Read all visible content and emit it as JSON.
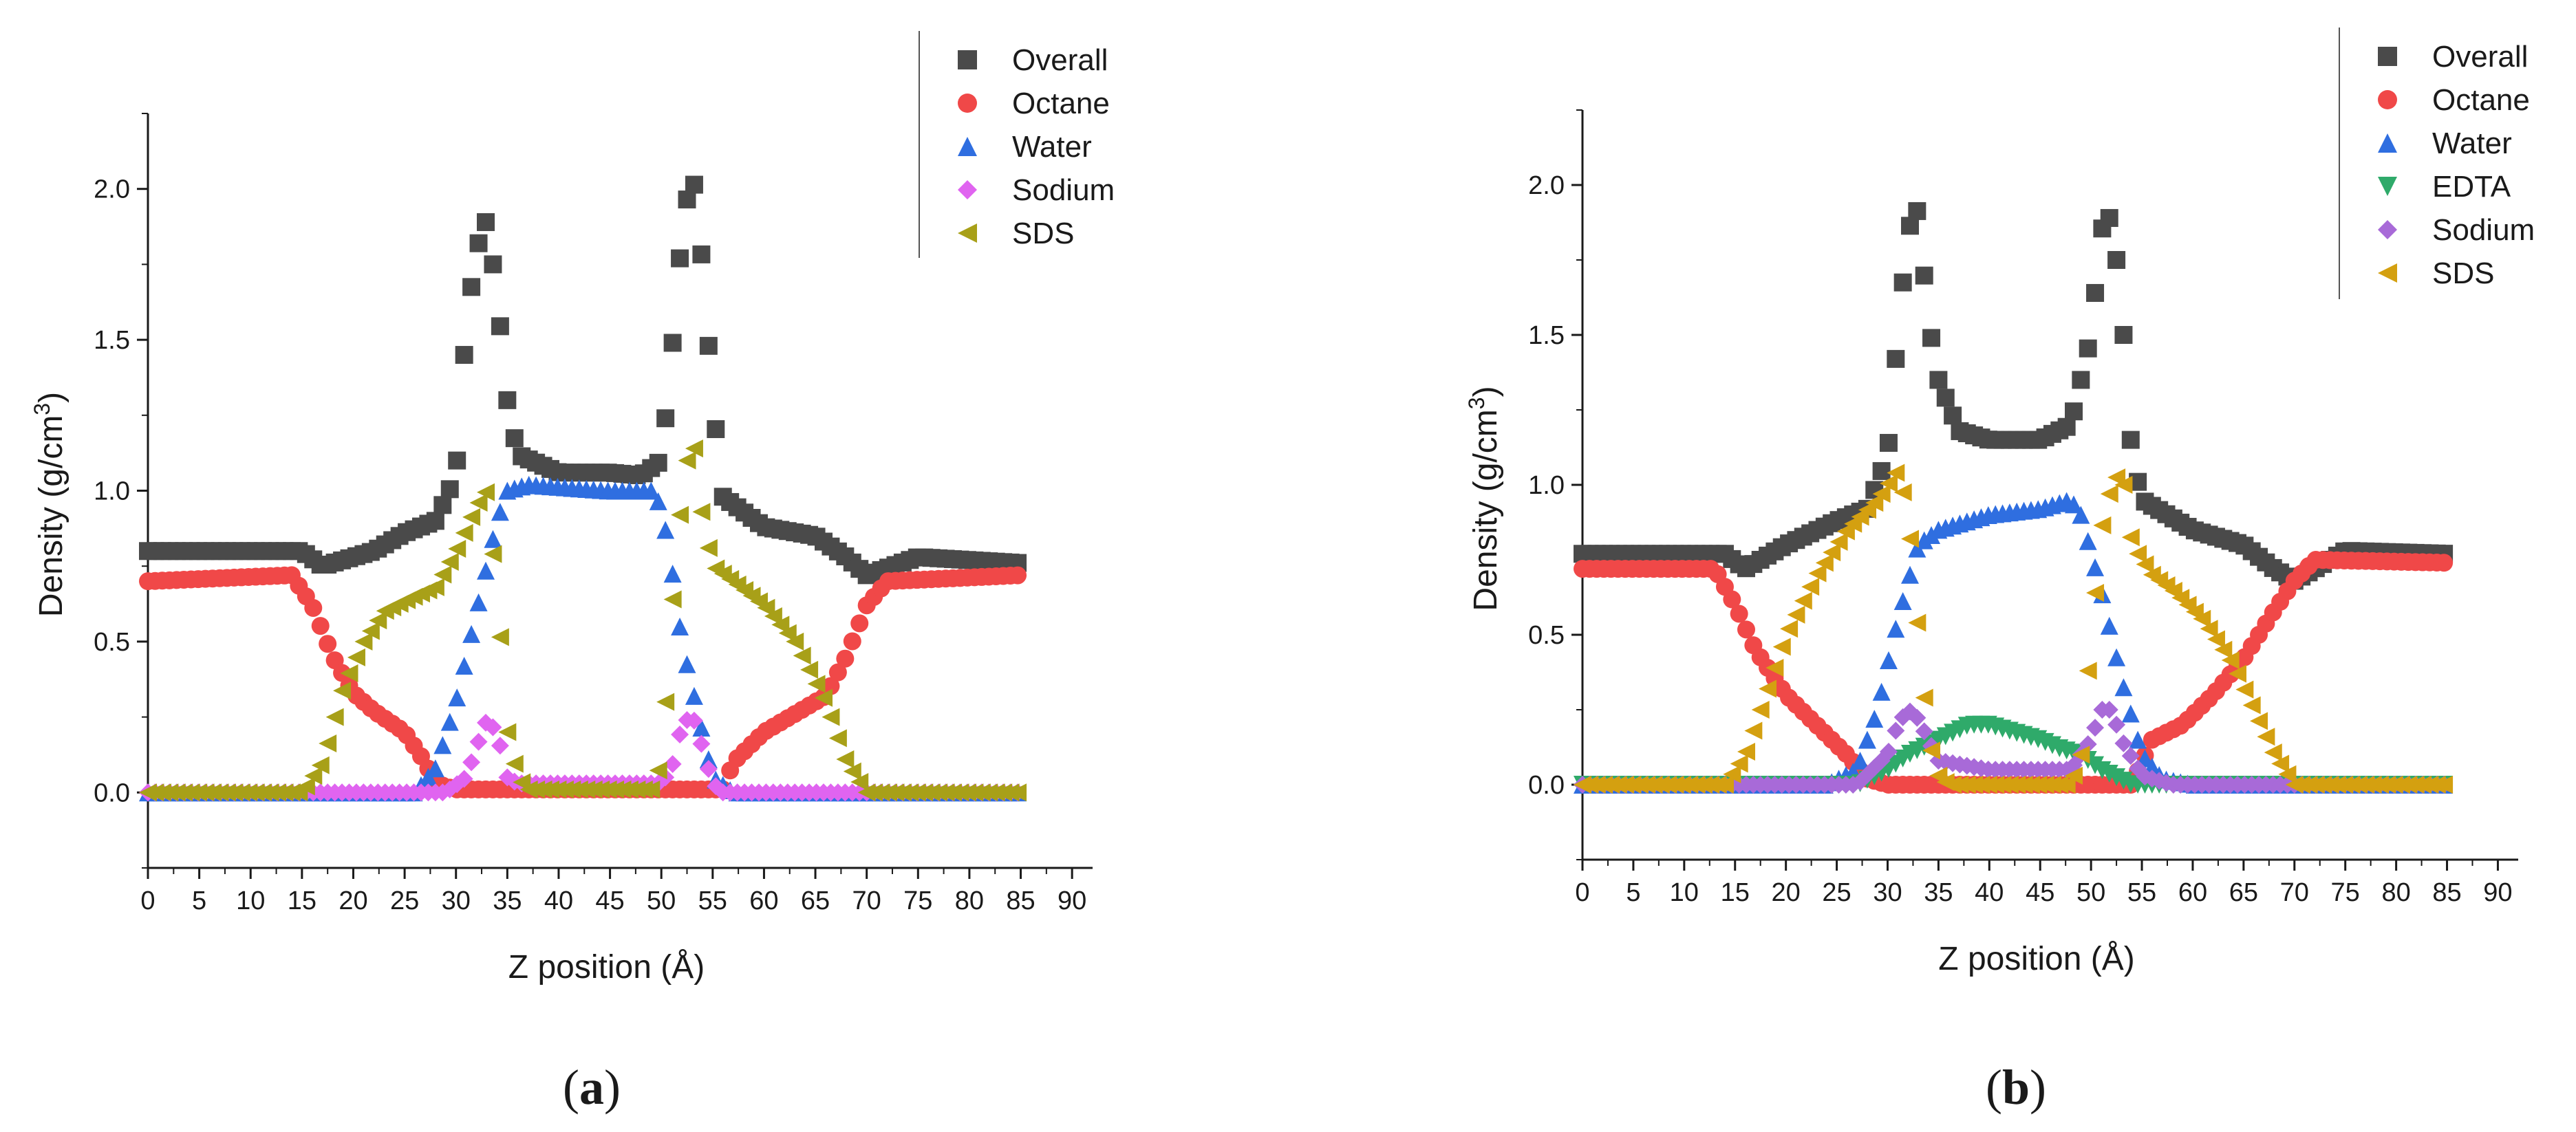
{
  "chart_data": [
    {
      "type": "scatter",
      "panel_label": "(a)",
      "xlabel": "Z position (Å)",
      "ylabel": "Density (g/cm",
      "ylabel_sup": "3",
      "ylabel_close": ")",
      "xlim": [
        0,
        92
      ],
      "ylim": [
        -0.25,
        2.25
      ],
      "xticks": [
        0,
        5,
        10,
        15,
        20,
        25,
        30,
        35,
        40,
        45,
        50,
        55,
        60,
        65,
        70,
        75,
        80,
        85,
        90
      ],
      "yticks": [
        0.0,
        0.5,
        1.0,
        1.5,
        2.0
      ],
      "ytick_labels": [
        "0.0",
        "0.5",
        "1.0",
        "1.5",
        "2.0"
      ],
      "legend_position": "top-right",
      "series": [
        {
          "name": "Overall",
          "marker": "square",
          "color": "#4a4a4a",
          "points": [
            [
              0,
              0.8
            ],
            [
              15,
              0.8
            ],
            [
              17,
              0.75
            ],
            [
              22,
              0.8
            ],
            [
              25,
              0.86
            ],
            [
              28,
              0.9
            ],
            [
              30,
              1.05
            ],
            [
              31,
              1.55
            ],
            [
              32,
              1.8
            ],
            [
              33,
              1.9
            ],
            [
              34,
              1.65
            ],
            [
              35,
              1.3
            ],
            [
              36,
              1.12
            ],
            [
              40,
              1.06
            ],
            [
              45,
              1.06
            ],
            [
              48,
              1.05
            ],
            [
              50,
              1.1
            ],
            [
              51,
              1.45
            ],
            [
              52,
              1.85
            ],
            [
              53,
              2.08
            ],
            [
              54,
              1.75
            ],
            [
              55,
              1.3
            ],
            [
              56,
              0.98
            ],
            [
              60,
              0.88
            ],
            [
              65,
              0.85
            ],
            [
              68,
              0.78
            ],
            [
              70,
              0.72
            ],
            [
              75,
              0.78
            ],
            [
              85,
              0.76
            ]
          ]
        },
        {
          "name": "Octane",
          "marker": "circle",
          "color": "#f04848",
          "points": [
            [
              0,
              0.7
            ],
            [
              14,
              0.72
            ],
            [
              16,
              0.62
            ],
            [
              18,
              0.45
            ],
            [
              20,
              0.33
            ],
            [
              22,
              0.27
            ],
            [
              25,
              0.2
            ],
            [
              27,
              0.1
            ],
            [
              28,
              0.03
            ],
            [
              30,
              0.01
            ],
            [
              56,
              0.01
            ],
            [
              57,
              0.1
            ],
            [
              60,
              0.2
            ],
            [
              63,
              0.26
            ],
            [
              66,
              0.32
            ],
            [
              68,
              0.45
            ],
            [
              70,
              0.62
            ],
            [
              72,
              0.7
            ],
            [
              85,
              0.72
            ]
          ]
        },
        {
          "name": "Water",
          "marker": "triangle-up",
          "color": "#2f6ee0",
          "points": [
            [
              0,
              0.0
            ],
            [
              26,
              0.0
            ],
            [
              28,
              0.08
            ],
            [
              30,
              0.3
            ],
            [
              32,
              0.6
            ],
            [
              34,
              0.9
            ],
            [
              35,
              1.0
            ],
            [
              37,
              1.02
            ],
            [
              45,
              1.0
            ],
            [
              49,
              1.0
            ],
            [
              50,
              0.95
            ],
            [
              51,
              0.75
            ],
            [
              52,
              0.5
            ],
            [
              54,
              0.2
            ],
            [
              55,
              0.05
            ],
            [
              57,
              0.0
            ],
            [
              85,
              0.0
            ]
          ]
        },
        {
          "name": "Sodium",
          "marker": "diamond",
          "color": "#e064f0",
          "points": [
            [
              0,
              0.0
            ],
            [
              29,
              0.0
            ],
            [
              31,
              0.05
            ],
            [
              32,
              0.15
            ],
            [
              33,
              0.24
            ],
            [
              34,
              0.2
            ],
            [
              35,
              0.05
            ],
            [
              36,
              0.03
            ],
            [
              50,
              0.03
            ],
            [
              51,
              0.08
            ],
            [
              52,
              0.22
            ],
            [
              53,
              0.26
            ],
            [
              54,
              0.15
            ],
            [
              55,
              0.03
            ],
            [
              56,
              0.0
            ],
            [
              85,
              0.0
            ]
          ]
        },
        {
          "name": "SDS",
          "marker": "triangle-left",
          "color": "#a8a018",
          "points": [
            [
              0,
              0.0
            ],
            [
              15,
              0.0
            ],
            [
              17,
              0.1
            ],
            [
              19,
              0.35
            ],
            [
              21,
              0.5
            ],
            [
              23,
              0.6
            ],
            [
              26,
              0.65
            ],
            [
              28,
              0.68
            ],
            [
              30,
              0.8
            ],
            [
              32,
              0.95
            ],
            [
              33,
              1.0
            ],
            [
              34,
              0.65
            ],
            [
              35,
              0.2
            ],
            [
              36,
              0.05
            ],
            [
              37,
              0.01
            ],
            [
              49,
              0.01
            ],
            [
              50,
              0.1
            ],
            [
              51,
              0.6
            ],
            [
              52,
              1.0
            ],
            [
              53,
              1.2
            ],
            [
              54,
              0.9
            ],
            [
              55,
              0.75
            ],
            [
              57,
              0.7
            ],
            [
              60,
              0.62
            ],
            [
              63,
              0.5
            ],
            [
              66,
              0.3
            ],
            [
              68,
              0.1
            ],
            [
              70,
              0.0
            ],
            [
              85,
              0.0
            ]
          ]
        }
      ]
    },
    {
      "type": "scatter",
      "panel_label": "(b)",
      "xlabel": "Z position (Å)",
      "ylabel": "Density (g/cm",
      "ylabel_sup": "3",
      "ylabel_close": ")",
      "xlim": [
        0,
        92
      ],
      "ylim": [
        -0.25,
        2.25
      ],
      "xticks": [
        0,
        5,
        10,
        15,
        20,
        25,
        30,
        35,
        40,
        45,
        50,
        55,
        60,
        65,
        70,
        75,
        80,
        85,
        90
      ],
      "yticks": [
        0.0,
        0.5,
        1.0,
        1.5,
        2.0
      ],
      "ytick_labels": [
        "0.0",
        "0.5",
        "1.0",
        "1.5",
        "2.0"
      ],
      "legend_position": "top-right",
      "series": [
        {
          "name": "Overall",
          "marker": "square",
          "color": "#4a4a4a",
          "points": [
            [
              0,
              0.77
            ],
            [
              14,
              0.77
            ],
            [
              16,
              0.72
            ],
            [
              20,
              0.8
            ],
            [
              25,
              0.88
            ],
            [
              28,
              0.92
            ],
            [
              30,
              1.1
            ],
            [
              31,
              1.5
            ],
            [
              32,
              1.85
            ],
            [
              33,
              1.92
            ],
            [
              34,
              1.55
            ],
            [
              35,
              1.35
            ],
            [
              37,
              1.18
            ],
            [
              40,
              1.15
            ],
            [
              45,
              1.15
            ],
            [
              48,
              1.2
            ],
            [
              50,
              1.5
            ],
            [
              51,
              1.85
            ],
            [
              52,
              1.9
            ],
            [
              53,
              1.6
            ],
            [
              54,
              1.1
            ],
            [
              55,
              0.95
            ],
            [
              60,
              0.85
            ],
            [
              65,
              0.8
            ],
            [
              68,
              0.72
            ],
            [
              70,
              0.68
            ],
            [
              75,
              0.78
            ],
            [
              85,
              0.77
            ]
          ]
        },
        {
          "name": "Octane",
          "marker": "circle",
          "color": "#f04848",
          "points": [
            [
              0,
              0.72
            ],
            [
              13,
              0.72
            ],
            [
              15,
              0.6
            ],
            [
              17,
              0.45
            ],
            [
              20,
              0.3
            ],
            [
              23,
              0.2
            ],
            [
              26,
              0.1
            ],
            [
              28,
              0.02
            ],
            [
              30,
              0.0
            ],
            [
              54,
              0.0
            ],
            [
              56,
              0.15
            ],
            [
              59,
              0.2
            ],
            [
              62,
              0.3
            ],
            [
              65,
              0.42
            ],
            [
              68,
              0.58
            ],
            [
              70,
              0.68
            ],
            [
              72,
              0.75
            ],
            [
              85,
              0.74
            ]
          ]
        },
        {
          "name": "Water",
          "marker": "triangle-up",
          "color": "#2f6ee0",
          "points": [
            [
              0,
              0.0
            ],
            [
              24,
              0.0
            ],
            [
              27,
              0.05
            ],
            [
              29,
              0.25
            ],
            [
              31,
              0.55
            ],
            [
              33,
              0.8
            ],
            [
              35,
              0.85
            ],
            [
              40,
              0.9
            ],
            [
              45,
              0.92
            ],
            [
              48,
              0.95
            ],
            [
              49,
              0.9
            ],
            [
              51,
              0.65
            ],
            [
              53,
              0.35
            ],
            [
              55,
              0.1
            ],
            [
              57,
              0.02
            ],
            [
              60,
              0.0
            ],
            [
              85,
              0.0
            ]
          ]
        },
        {
          "name": "EDTA",
          "marker": "triangle-down",
          "color": "#2faa6a",
          "points": [
            [
              0,
              0.0
            ],
            [
              27,
              0.0
            ],
            [
              30,
              0.05
            ],
            [
              32,
              0.1
            ],
            [
              35,
              0.15
            ],
            [
              38,
              0.2
            ],
            [
              40,
              0.2
            ],
            [
              43,
              0.17
            ],
            [
              45,
              0.15
            ],
            [
              47,
              0.12
            ],
            [
              49,
              0.1
            ],
            [
              51,
              0.05
            ],
            [
              54,
              0.0
            ],
            [
              85,
              0.0
            ]
          ]
        },
        {
          "name": "Sodium",
          "marker": "diamond",
          "color": "#a86ad8",
          "points": [
            [
              0,
              0.0
            ],
            [
              27,
              0.0
            ],
            [
              30,
              0.1
            ],
            [
              31,
              0.2
            ],
            [
              32,
              0.25
            ],
            [
              33,
              0.22
            ],
            [
              35,
              0.08
            ],
            [
              40,
              0.05
            ],
            [
              48,
              0.05
            ],
            [
              50,
              0.15
            ],
            [
              51,
              0.25
            ],
            [
              52,
              0.25
            ],
            [
              53,
              0.15
            ],
            [
              55,
              0.03
            ],
            [
              58,
              0.0
            ],
            [
              85,
              0.0
            ]
          ]
        },
        {
          "name": "SDS",
          "marker": "triangle-left",
          "color": "#d4a010",
          "points": [
            [
              0,
              0.0
            ],
            [
              14,
              0.0
            ],
            [
              16,
              0.1
            ],
            [
              18,
              0.3
            ],
            [
              20,
              0.5
            ],
            [
              23,
              0.7
            ],
            [
              26,
              0.85
            ],
            [
              29,
              0.95
            ],
            [
              31,
              1.05
            ],
            [
              32,
              0.9
            ],
            [
              33,
              0.5
            ],
            [
              34,
              0.15
            ],
            [
              35,
              0.03
            ],
            [
              36,
              0.0
            ],
            [
              48,
              0.0
            ],
            [
              49,
              0.1
            ],
            [
              50,
              0.5
            ],
            [
              51,
              0.85
            ],
            [
              52,
              1.0
            ],
            [
              53,
              1.05
            ],
            [
              54,
              0.8
            ],
            [
              56,
              0.7
            ],
            [
              58,
              0.65
            ],
            [
              61,
              0.55
            ],
            [
              64,
              0.4
            ],
            [
              66,
              0.25
            ],
            [
              68,
              0.1
            ],
            [
              70,
              0.0
            ],
            [
              85,
              0.0
            ]
          ]
        }
      ]
    }
  ]
}
